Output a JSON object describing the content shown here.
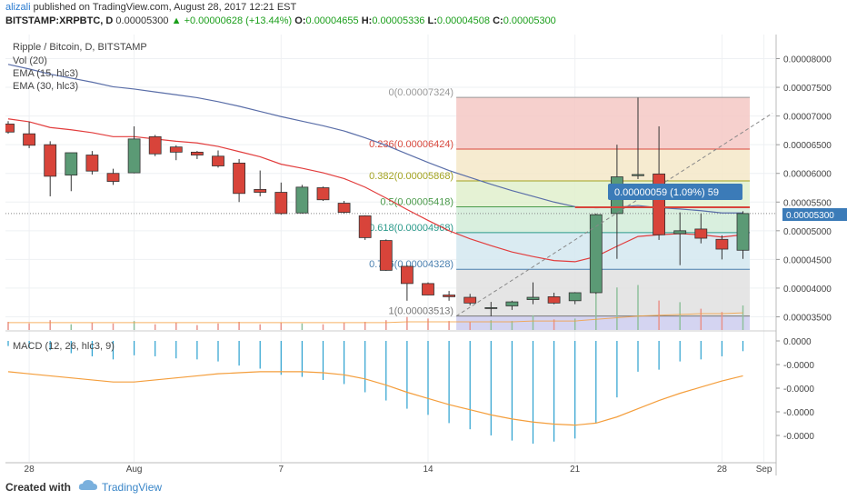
{
  "header": {
    "author": "alizali",
    "published": "published on TradingView.com, August 28, 2017 12:21 EST",
    "symbol": "BITSTAMP:XRPBTC, D",
    "last": "0.00005300",
    "change": "+0.00000628 (+13.44%)",
    "o_label": "O:",
    "o_value": "0.00004655",
    "h_label": "H:",
    "h_value": "0.00005336",
    "l_label": "L:",
    "l_value": "0.00004508",
    "c_label": "C:",
    "c_value": "0.00005300"
  },
  "colors": {
    "up": "#5b9a75",
    "down": "#d8443a",
    "ema15": "#e23d3d",
    "ema30": "#5a6ea8",
    "macd_hist": "#2aa0cf",
    "macd_signal": "#f49e3c",
    "axis_text": "#444444",
    "last_price_bg": "#3b7bb8"
  },
  "legend": {
    "title": "Ripple / Bitcoin, D, BITSTAMP",
    "vol": "Vol (20)",
    "ema15": "EMA (15, hlc3)",
    "ema30": "EMA (30, hlc3)",
    "macd": "MACD (12, 26, hlc3, 9)"
  },
  "tooltip": "0.00000059 (1.09%) 59",
  "last_price_label": "0.00005300",
  "footer": {
    "created": "Created with",
    "brand": "TradingView",
    "logo_icon": "tradingview-cloud-icon"
  },
  "chart_data": {
    "type": "candlestick",
    "x_axis_labels": [
      "28",
      "Aug",
      "7",
      "14",
      "21",
      "28",
      "Sep"
    ],
    "price_axis_ticks": [
      "0.00008000",
      "0.00007500",
      "0.00007000",
      "0.00006500",
      "0.00006000",
      "0.00005500",
      "0.00005000",
      "0.00004500",
      "0.00004000",
      "0.00003500"
    ],
    "macd_axis_ticks": [
      "0.0000",
      "-0.0000",
      "-0.0000",
      "-0.0000",
      "-0.0000"
    ],
    "price_range": [
      3.27e-05,
      8.42e-05
    ],
    "fib_levels": [
      {
        "label": "0(0.00007324)",
        "value": 7.324e-05,
        "color": "#999999",
        "fill": "#f4c8c4"
      },
      {
        "label": "0.236(0.00006424)",
        "value": 6.424e-05,
        "color": "#d94a3f",
        "fill": "#f5e8c8"
      },
      {
        "label": "0.382(0.00005868)",
        "value": 5.868e-05,
        "color": "#a3a321",
        "fill": "#e0f0cc"
      },
      {
        "label": "0.5(0.00005418)",
        "value": 5.418e-05,
        "color": "#4a9a4a",
        "fill": "#d2ecd8"
      },
      {
        "label": "0.618(0.00004968)",
        "value": 4.968e-05,
        "color": "#2a9a8a",
        "fill": "#d4e8f0"
      },
      {
        "label": "0.786(0.00004328)",
        "value": 4.328e-05,
        "color": "#4b80b0",
        "fill": "#e0e0e0"
      },
      {
        "label": "1(0.00003513)",
        "value": 3.513e-05,
        "color": "#777777",
        "fill": "#ccccee"
      }
    ],
    "candles": [
      {
        "o": 6.86e-05,
        "h": 6.91e-05,
        "l": 6.69e-05,
        "c": 6.72e-05
      },
      {
        "o": 6.69e-05,
        "h": 6.9e-05,
        "l": 6.44e-05,
        "c": 6.49e-05
      },
      {
        "o": 6.5e-05,
        "h": 6.56e-05,
        "l": 5.6e-05,
        "c": 5.95e-05
      },
      {
        "o": 5.97e-05,
        "h": 6.36e-05,
        "l": 5.69e-05,
        "c": 6.36e-05
      },
      {
        "o": 6.32e-05,
        "h": 6.39e-05,
        "l": 5.98e-05,
        "c": 6.04e-05
      },
      {
        "o": 6e-05,
        "h": 6.08e-05,
        "l": 5.8e-05,
        "c": 5.86e-05
      },
      {
        "o": 6.01e-05,
        "h": 6.82e-05,
        "l": 6e-05,
        "c": 6.6e-05
      },
      {
        "o": 6.64e-05,
        "h": 6.67e-05,
        "l": 6.3e-05,
        "c": 6.34e-05
      },
      {
        "o": 6.46e-05,
        "h": 6.49e-05,
        "l": 6.23e-05,
        "c": 6.37e-05
      },
      {
        "o": 6.37e-05,
        "h": 6.39e-05,
        "l": 6.25e-05,
        "c": 6.32e-05
      },
      {
        "o": 6.3e-05,
        "h": 6.4e-05,
        "l": 6.1e-05,
        "c": 6.13e-05
      },
      {
        "o": 6.18e-05,
        "h": 6.25e-05,
        "l": 5.5e-05,
        "c": 5.65e-05
      },
      {
        "o": 5.72e-05,
        "h": 6.05e-05,
        "l": 5.6e-05,
        "c": 5.67e-05
      },
      {
        "o": 5.67e-05,
        "h": 5.84e-05,
        "l": 5.28e-05,
        "c": 5.3e-05
      },
      {
        "o": 5.31e-05,
        "h": 5.8e-05,
        "l": 5.3e-05,
        "c": 5.76e-05
      },
      {
        "o": 5.75e-05,
        "h": 5.77e-05,
        "l": 5.52e-05,
        "c": 5.54e-05
      },
      {
        "o": 5.48e-05,
        "h": 5.52e-05,
        "l": 5.3e-05,
        "c": 5.32e-05
      },
      {
        "o": 5.26e-05,
        "h": 5.27e-05,
        "l": 4.84e-05,
        "c": 4.88e-05
      },
      {
        "o": 4.83e-05,
        "h": 4.85e-05,
        "l": 4.3e-05,
        "c": 4.31e-05
      },
      {
        "o": 4.38e-05,
        "h": 4.4e-05,
        "l": 3.78e-05,
        "c": 4.08e-05
      },
      {
        "o": 4.08e-05,
        "h": 4.1e-05,
        "l": 3.9e-05,
        "c": 3.88e-05
      },
      {
        "o": 3.88e-05,
        "h": 3.95e-05,
        "l": 3.78e-05,
        "c": 3.85e-05
      },
      {
        "o": 3.84e-05,
        "h": 3.9e-05,
        "l": 3.7e-05,
        "c": 3.74e-05
      },
      {
        "o": 3.66e-05,
        "h": 3.76e-05,
        "l": 3.51e-05,
        "c": 3.66e-05
      },
      {
        "o": 3.69e-05,
        "h": 3.78e-05,
        "l": 3.62e-05,
        "c": 3.76e-05
      },
      {
        "o": 3.8e-05,
        "h": 4.1e-05,
        "l": 3.72e-05,
        "c": 3.84e-05
      },
      {
        "o": 3.85e-05,
        "h": 3.92e-05,
        "l": 3.72e-05,
        "c": 3.74e-05
      },
      {
        "o": 3.78e-05,
        "h": 3.93e-05,
        "l": 3.72e-05,
        "c": 3.92e-05
      },
      {
        "o": 3.92e-05,
        "h": 5.3e-05,
        "l": 3.9e-05,
        "c": 5.28e-05
      },
      {
        "o": 5.3e-05,
        "h": 6.5e-05,
        "l": 4.51e-05,
        "c": 5.94e-05
      },
      {
        "o": 5.96e-05,
        "h": 7.32e-05,
        "l": 5.9e-05,
        "c": 5.98e-05
      },
      {
        "o": 5.99e-05,
        "h": 6.82e-05,
        "l": 4.84e-05,
        "c": 4.93e-05
      },
      {
        "o": 4.95e-05,
        "h": 5.32e-05,
        "l": 4.4e-05,
        "c": 5e-05
      },
      {
        "o": 5.03e-05,
        "h": 5.3e-05,
        "l": 4.78e-05,
        "c": 4.87e-05
      },
      {
        "o": 4.85e-05,
        "h": 4.92e-05,
        "l": 4.5e-05,
        "c": 4.68e-05
      },
      {
        "o": 4.66e-05,
        "h": 5.34e-05,
        "l": 4.51e-05,
        "c": 5.3e-05
      }
    ],
    "ema15": [
      6.95e-05,
      6.9e-05,
      6.8e-05,
      6.76e-05,
      6.71e-05,
      6.64e-05,
      6.64e-05,
      6.6e-05,
      6.56e-05,
      6.53e-05,
      6.47e-05,
      6.38e-05,
      6.29e-05,
      6.16e-05,
      6.09e-05,
      6.01e-05,
      5.91e-05,
      5.76e-05,
      5.57e-05,
      5.37e-05,
      5.18e-05,
      5e-05,
      4.86e-05,
      4.74e-05,
      4.63e-05,
      4.55e-05,
      4.48e-05,
      4.46e-05,
      4.55e-05,
      4.73e-05,
      4.9e-05,
      4.93e-05,
      4.95e-05,
      4.93e-05,
      4.89e-05,
      4.93e-05
    ],
    "ema30": [
      7.9e-05,
      7.82e-05,
      7.73e-05,
      7.66e-05,
      7.59e-05,
      7.51e-05,
      7.47e-05,
      7.42e-05,
      7.37e-05,
      7.32e-05,
      7.25e-05,
      7.17e-05,
      7.08e-05,
      6.99e-05,
      6.91e-05,
      6.83e-05,
      6.74e-05,
      6.62e-05,
      6.49e-05,
      6.34e-05,
      6.19e-05,
      6.05e-05,
      5.93e-05,
      5.81e-05,
      5.7e-05,
      5.6e-05,
      5.5e-05,
      5.42e-05,
      5.4e-05,
      5.41e-05,
      5.44e-05,
      5.4e-05,
      5.38e-05,
      5.35e-05,
      5.31e-05,
      5.31e-05
    ],
    "macd_hist": [
      -0.05,
      -0.07,
      -0.09,
      -0.12,
      -0.15,
      -0.18,
      -0.14,
      -0.15,
      -0.17,
      -0.18,
      -0.2,
      -0.24,
      -0.27,
      -0.33,
      -0.35,
      -0.38,
      -0.42,
      -0.5,
      -0.58,
      -0.66,
      -0.72,
      -0.8,
      -0.86,
      -0.92,
      -0.97,
      -1.0,
      -0.98,
      -0.95,
      -0.8,
      -0.55,
      -0.3,
      -0.28,
      -0.2,
      -0.18,
      -0.15,
      -0.1
    ],
    "macd_signal": [
      -0.3,
      -0.32,
      -0.34,
      -0.36,
      -0.38,
      -0.4,
      -0.4,
      -0.38,
      -0.36,
      -0.34,
      -0.32,
      -0.31,
      -0.3,
      -0.3,
      -0.3,
      -0.31,
      -0.33,
      -0.37,
      -0.43,
      -0.5,
      -0.56,
      -0.62,
      -0.67,
      -0.72,
      -0.76,
      -0.79,
      -0.81,
      -0.82,
      -0.8,
      -0.74,
      -0.66,
      -0.58,
      -0.51,
      -0.45,
      -0.39,
      -0.34
    ],
    "volume": [
      0.1,
      0.08,
      0.12,
      0.07,
      0.09,
      0.08,
      0.11,
      0.07,
      0.09,
      0.06,
      0.08,
      0.1,
      0.07,
      0.09,
      0.08,
      0.07,
      0.09,
      0.1,
      0.12,
      0.16,
      0.14,
      0.11,
      0.1,
      0.12,
      0.11,
      0.18,
      0.13,
      0.14,
      0.46,
      0.52,
      0.55,
      0.36,
      0.34,
      0.26,
      0.22,
      0.3
    ],
    "vol_ma": [
      0.09,
      0.09,
      0.09,
      0.09,
      0.09,
      0.09,
      0.09,
      0.09,
      0.09,
      0.09,
      0.09,
      0.09,
      0.09,
      0.09,
      0.09,
      0.09,
      0.09,
      0.09,
      0.09,
      0.1,
      0.1,
      0.1,
      0.1,
      0.1,
      0.1,
      0.11,
      0.11,
      0.11,
      0.13,
      0.15,
      0.17,
      0.18,
      0.19,
      0.2,
      0.2,
      0.21
    ]
  }
}
